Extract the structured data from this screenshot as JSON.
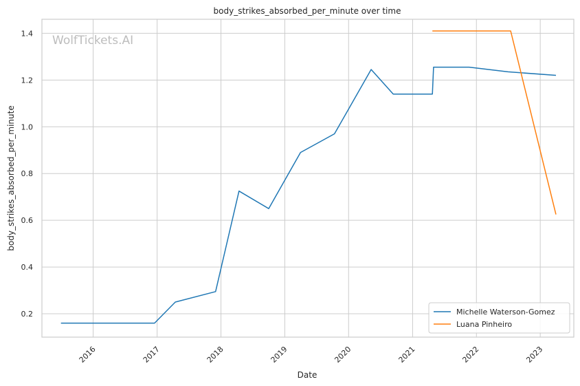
{
  "watermark": "WolfTickets.AI",
  "chart_data": {
    "type": "line",
    "title": "body_strikes_absorbed_per_minute over time",
    "xlabel": "Date",
    "ylabel": "body_strikes_absorbed_per_minute",
    "xlim": [
      "2015-03-14",
      "2023-07-12"
    ],
    "ylim": [
      0.1,
      1.46
    ],
    "x_ticks": [
      "2016-01-01",
      "2017-01-01",
      "2018-01-01",
      "2019-01-01",
      "2020-01-01",
      "2021-01-01",
      "2022-01-01",
      "2023-01-01"
    ],
    "x_tick_labels": [
      "2016",
      "2017",
      "2018",
      "2019",
      "2020",
      "2021",
      "2022",
      "2023"
    ],
    "y_ticks": [
      0.2,
      0.4,
      0.6,
      0.8,
      1.0,
      1.2,
      1.4
    ],
    "y_tick_labels": [
      "0.2",
      "0.4",
      "0.6",
      "0.8",
      "1.0",
      "1.2",
      "1.4"
    ],
    "grid": true,
    "legend_position": "bottom-right",
    "series": [
      {
        "name": "Michelle Waterson-Gomez",
        "color": "#1f77b4",
        "x": [
          "2015-07-01",
          "2016-12-17",
          "2017-04-15",
          "2017-12-01",
          "2018-04-14",
          "2018-10-01",
          "2019-04-01",
          "2019-10-12",
          "2020-05-09",
          "2020-09-12",
          "2021-04-24",
          "2021-05-01",
          "2021-11-20",
          "2022-07-01",
          "2023-04-01"
        ],
        "y": [
          0.16,
          0.16,
          0.25,
          0.295,
          0.725,
          0.65,
          0.89,
          0.97,
          1.245,
          1.14,
          1.14,
          1.255,
          1.255,
          1.235,
          1.22
        ]
      },
      {
        "name": "Luana Pinheiro",
        "color": "#ff7f0e",
        "x": [
          "2021-04-24",
          "2022-07-16",
          "2023-04-01"
        ],
        "y": [
          1.41,
          1.41,
          0.625
        ]
      }
    ]
  }
}
